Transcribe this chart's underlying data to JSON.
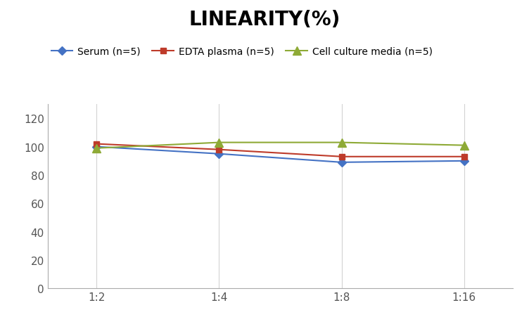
{
  "title": "LINEARITY(%)",
  "x_labels": [
    "1:2",
    "1:4",
    "1:8",
    "1:16"
  ],
  "x_values": [
    0,
    1,
    2,
    3
  ],
  "series": [
    {
      "label": "Serum (n=5)",
      "values": [
        100,
        95,
        89,
        90
      ],
      "color": "#4472C4",
      "marker": "D",
      "marker_size": 6,
      "linewidth": 1.5
    },
    {
      "label": "EDTA plasma (n=5)",
      "values": [
        102,
        98,
        93,
        93
      ],
      "color": "#BE3B2A",
      "marker": "s",
      "marker_size": 6,
      "linewidth": 1.5
    },
    {
      "label": "Cell culture media (n=5)",
      "values": [
        99,
        103,
        103,
        101
      ],
      "color": "#8EAA36",
      "marker": "^",
      "marker_size": 8,
      "linewidth": 1.5
    }
  ],
  "ylim": [
    0,
    130
  ],
  "yticks": [
    0,
    20,
    40,
    60,
    80,
    100,
    120
  ],
  "background_color": "#ffffff",
  "grid_color": "#d3d3d3",
  "title_fontsize": 20,
  "legend_fontsize": 10,
  "tick_fontsize": 11
}
